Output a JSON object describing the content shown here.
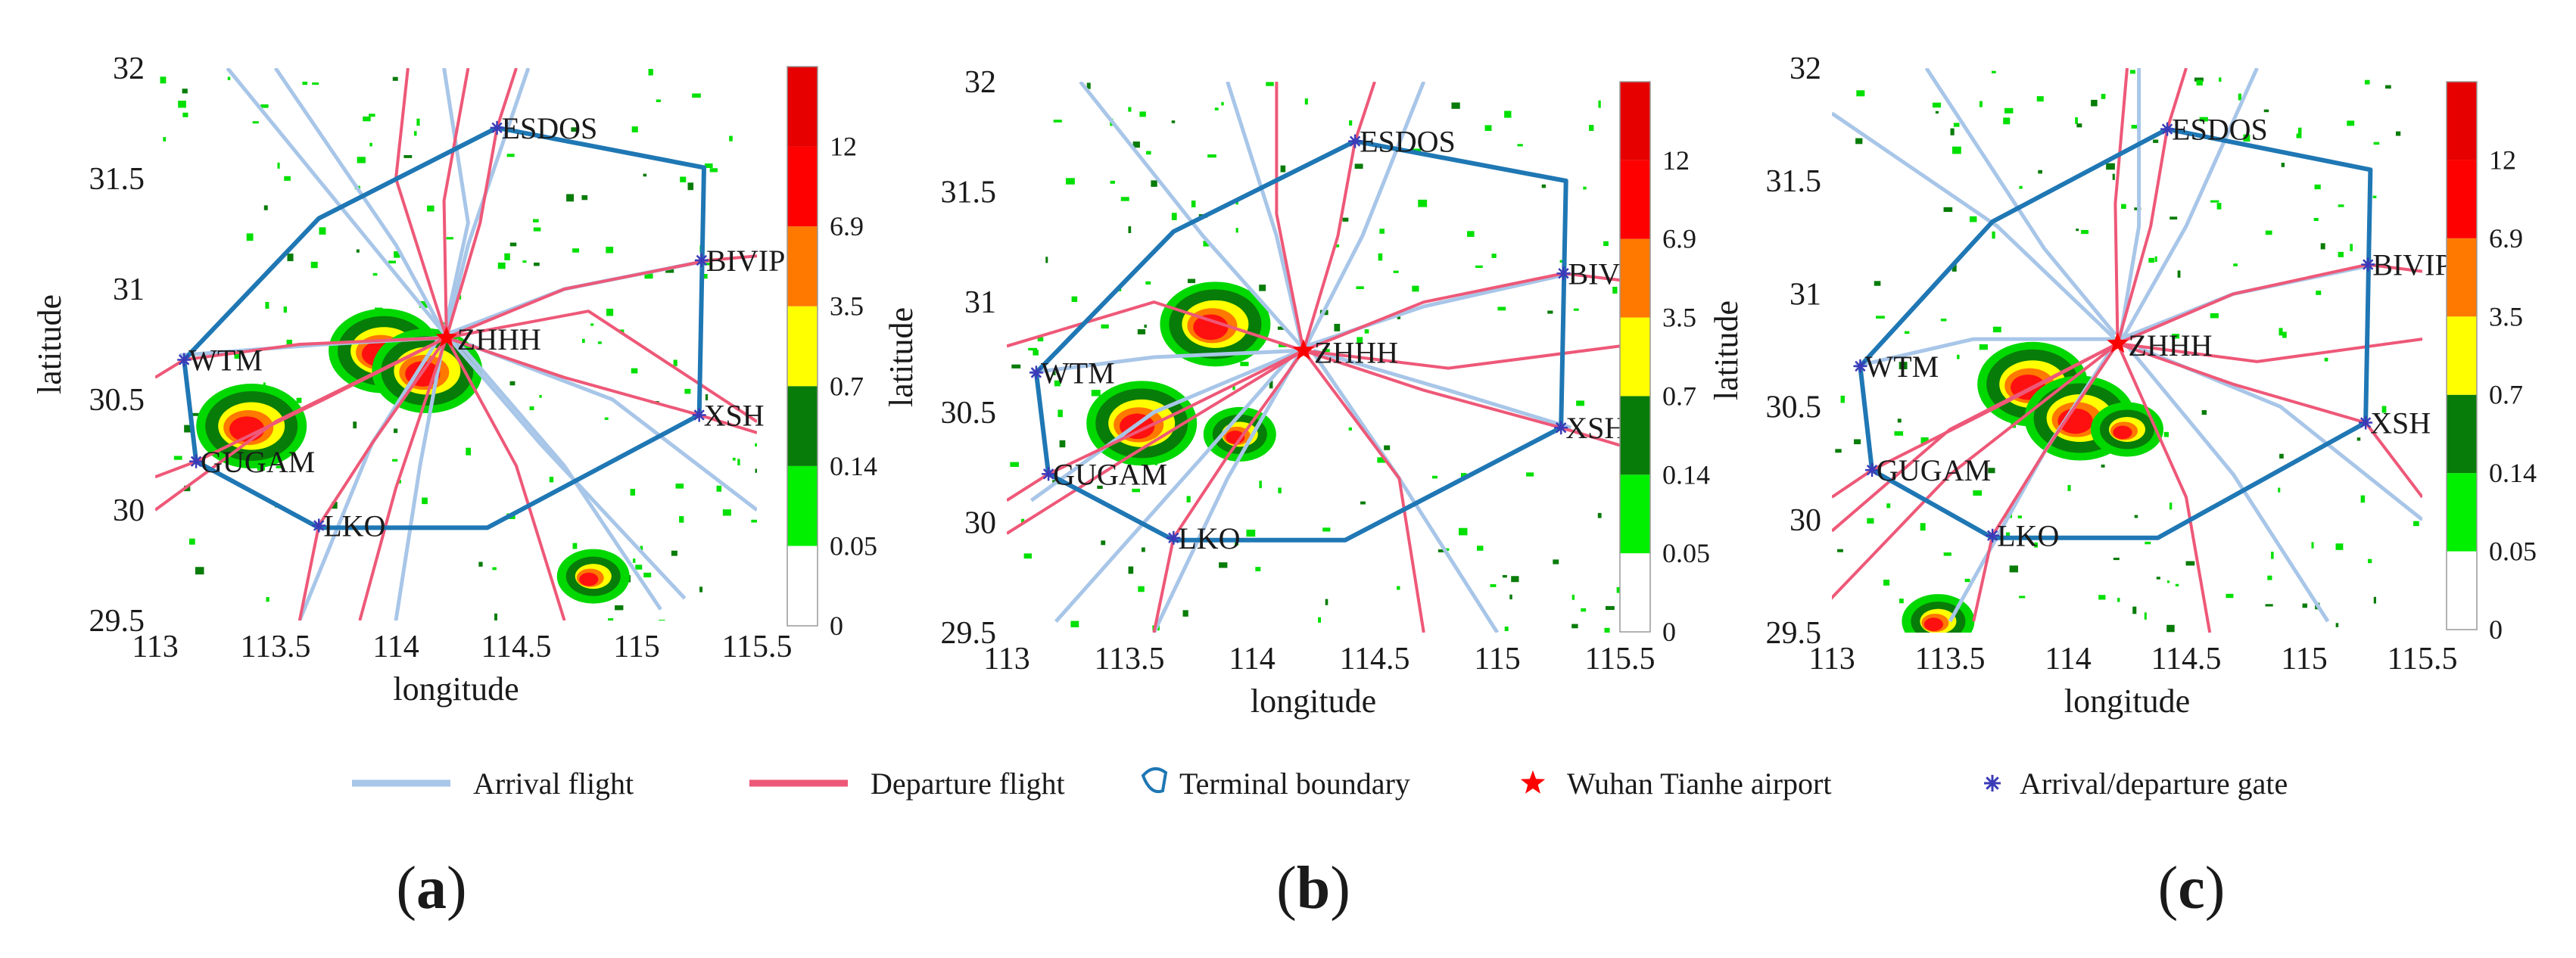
{
  "figure": {
    "panels": [
      {
        "id": "a",
        "label_open": "(",
        "letter": "a",
        "label_close": ")"
      },
      {
        "id": "b",
        "label_open": "(",
        "letter": "b",
        "label_close": ")"
      },
      {
        "id": "c",
        "label_open": "(",
        "letter": "c",
        "label_close": ")"
      }
    ],
    "x_ticks": [
      "113",
      "113.5",
      "114",
      "114.5",
      "115",
      "115.5"
    ],
    "y_ticks": [
      "29.5",
      "30",
      "30.5",
      "31",
      "31.5",
      "32"
    ],
    "xlabel": "longitude",
    "ylabel": "latitude",
    "xlim": [
      113,
      115.5
    ],
    "ylim": [
      29.5,
      32
    ],
    "colorbar_ticks": [
      "0",
      "0.05",
      "0.14",
      "0.7",
      "3.5",
      "6.9",
      "12"
    ],
    "colorbar_colors": [
      "#ffffff",
      "#00f000",
      "#087c08",
      "#ffff00",
      "#ff7800",
      "#ff0000",
      "#e60000"
    ],
    "gates": [
      {
        "name": "ESDOS",
        "lon": 114.42,
        "lat": 31.73
      },
      {
        "name": "BIVIP",
        "lon": 115.27,
        "lat": 31.13
      },
      {
        "name": "WTM",
        "lon": 113.12,
        "lat": 30.68
      },
      {
        "name": "XSH",
        "lon": 115.26,
        "lat": 30.43
      },
      {
        "name": "GUGAM",
        "lon": 113.17,
        "lat": 30.22
      },
      {
        "name": "LKO",
        "lon": 113.68,
        "lat": 29.93
      }
    ],
    "airport": {
      "name": "ZHHH",
      "lon": 114.21,
      "lat": 30.78
    },
    "boundary": [
      [
        114.42,
        31.73
      ],
      [
        115.28,
        31.55
      ],
      [
        115.26,
        30.43
      ],
      [
        114.38,
        29.92
      ],
      [
        113.68,
        29.92
      ],
      [
        113.17,
        30.22
      ],
      [
        113.12,
        30.68
      ],
      [
        113.68,
        31.32
      ]
    ],
    "colors": {
      "arrival": "#a8c6e8",
      "departure": "#ee5878",
      "boundary": "#1f77b4",
      "gate_marker": "#3b3bb8",
      "airport": "#ff0000"
    },
    "legend": [
      {
        "kind": "line-arrival",
        "label": "Arrival flight"
      },
      {
        "kind": "line-departure",
        "label": "Departure flight"
      },
      {
        "kind": "boundary",
        "label": "Terminal boundary"
      },
      {
        "kind": "airport",
        "label": "Wuhan Tianhe airport"
      },
      {
        "kind": "gate",
        "label": "Arrival/departure gate"
      }
    ]
  },
  "chart_data": [
    {
      "type": "map",
      "panel": "a",
      "xlabel": "longitude",
      "ylabel": "latitude",
      "xlim": [
        113,
        115.5
      ],
      "ylim": [
        29.5,
        32
      ],
      "colorbar": [
        "0",
        "0.05",
        "0.14",
        "0.7",
        "3.5",
        "6.9",
        "12"
      ],
      "weather_cells": [
        {
          "lon": 113.95,
          "lat": 30.72,
          "intensity": "heavy"
        },
        {
          "lon": 114.13,
          "lat": 30.63,
          "intensity": "heavy"
        },
        {
          "lon": 113.4,
          "lat": 30.38,
          "intensity": "heavy"
        },
        {
          "lon": 114.82,
          "lat": 29.7,
          "intensity": "moderate"
        }
      ]
    },
    {
      "type": "map",
      "panel": "b",
      "xlabel": "longitude",
      "ylabel": "latitude",
      "xlim": [
        113,
        115.5
      ],
      "ylim": [
        29.5,
        32
      ],
      "colorbar": [
        "0",
        "0.05",
        "0.14",
        "0.7",
        "3.5",
        "6.9",
        "12"
      ],
      "weather_cells": [
        {
          "lon": 113.85,
          "lat": 30.9,
          "intensity": "heavy"
        },
        {
          "lon": 113.55,
          "lat": 30.45,
          "intensity": "heavy"
        },
        {
          "lon": 113.95,
          "lat": 30.4,
          "intensity": "moderate"
        }
      ]
    },
    {
      "type": "map",
      "panel": "c",
      "xlabel": "longitude",
      "ylabel": "latitude",
      "xlim": [
        113,
        115.5
      ],
      "ylim": [
        29.5,
        32
      ],
      "colorbar": [
        "0",
        "0.05",
        "0.14",
        "0.7",
        "3.5",
        "6.9",
        "12"
      ],
      "weather_cells": [
        {
          "lon": 113.85,
          "lat": 30.6,
          "intensity": "heavy"
        },
        {
          "lon": 114.05,
          "lat": 30.45,
          "intensity": "heavy"
        },
        {
          "lon": 114.25,
          "lat": 30.4,
          "intensity": "moderate"
        },
        {
          "lon": 113.45,
          "lat": 29.55,
          "intensity": "moderate"
        }
      ]
    }
  ]
}
